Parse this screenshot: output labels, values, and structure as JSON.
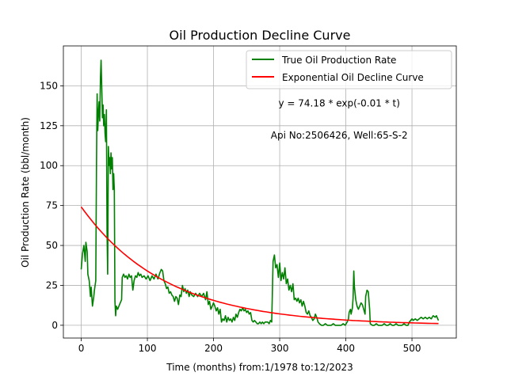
{
  "chart_data": {
    "type": "line",
    "title": "Oil Production Decline Curve",
    "xlabel": "Time (months) from:1/1978 to:12/2023",
    "ylabel": "Oil Production Rate (bbl/month)",
    "xlim": [
      -27,
      567
    ],
    "ylim": [
      -8,
      175
    ],
    "xticks": [
      0,
      100,
      200,
      300,
      400,
      500
    ],
    "yticks": [
      0,
      25,
      50,
      75,
      100,
      125,
      150
    ],
    "grid": true,
    "legend_position": "top-right",
    "annotations": [
      {
        "text": "y = 74.18 * exp(-0.01 * t)",
        "x": 390,
        "y": 137
      },
      {
        "text": "Api No:2506426, Well:65-S-2",
        "x": 390,
        "y": 117
      }
    ],
    "series": [
      {
        "name": "True Oil Production Rate",
        "color": "#008000",
        "kind": "observed",
        "points": [
          [
            0,
            35
          ],
          [
            2,
            45
          ],
          [
            4,
            50
          ],
          [
            6,
            40
          ],
          [
            7,
            52
          ],
          [
            9,
            46
          ],
          [
            10,
            32
          ],
          [
            12,
            28
          ],
          [
            14,
            18
          ],
          [
            15,
            24
          ],
          [
            17,
            12
          ],
          [
            19,
            18
          ],
          [
            20,
            22
          ],
          [
            22,
            28
          ],
          [
            23,
            100
          ],
          [
            24,
            145
          ],
          [
            25,
            122
          ],
          [
            26,
            133
          ],
          [
            27,
            140
          ],
          [
            28,
            128
          ],
          [
            29,
            155
          ],
          [
            30,
            166
          ],
          [
            31,
            150
          ],
          [
            32,
            130
          ],
          [
            33,
            138
          ],
          [
            34,
            125
          ],
          [
            35,
            132
          ],
          [
            36,
            120
          ],
          [
            37,
            115
          ],
          [
            38,
            135
          ],
          [
            39,
            60
          ],
          [
            40,
            32
          ],
          [
            41,
            112
          ],
          [
            42,
            100
          ],
          [
            43,
            105
          ],
          [
            44,
            95
          ],
          [
            45,
            108
          ],
          [
            46,
            98
          ],
          [
            47,
            105
          ],
          [
            48,
            85
          ],
          [
            49,
            95
          ],
          [
            50,
            85
          ],
          [
            51,
            15
          ],
          [
            52,
            6
          ],
          [
            53,
            12
          ],
          [
            55,
            10
          ],
          [
            57,
            12
          ],
          [
            59,
            14
          ],
          [
            61,
            16
          ],
          [
            62,
            30
          ],
          [
            64,
            32
          ],
          [
            66,
            30
          ],
          [
            68,
            31
          ],
          [
            70,
            29
          ],
          [
            72,
            32
          ],
          [
            74,
            30
          ],
          [
            76,
            31
          ],
          [
            78,
            22
          ],
          [
            80,
            28
          ],
          [
            82,
            31
          ],
          [
            84,
            30
          ],
          [
            86,
            33
          ],
          [
            88,
            31
          ],
          [
            90,
            32
          ],
          [
            92,
            30
          ],
          [
            95,
            31
          ],
          [
            98,
            29
          ],
          [
            101,
            31
          ],
          [
            104,
            28
          ],
          [
            107,
            31
          ],
          [
            110,
            29
          ],
          [
            113,
            32
          ],
          [
            116,
            29
          ],
          [
            119,
            33
          ],
          [
            121,
            35
          ],
          [
            123,
            34
          ],
          [
            125,
            28
          ],
          [
            127,
            26
          ],
          [
            129,
            23
          ],
          [
            131,
            24
          ],
          [
            133,
            20
          ],
          [
            135,
            21
          ],
          [
            137,
            19
          ],
          [
            139,
            18
          ],
          [
            141,
            15
          ],
          [
            143,
            18
          ],
          [
            145,
            17
          ],
          [
            147,
            13
          ],
          [
            149,
            19
          ],
          [
            151,
            18
          ],
          [
            153,
            25
          ],
          [
            155,
            21
          ],
          [
            157,
            23
          ],
          [
            159,
            20
          ],
          [
            161,
            22
          ],
          [
            163,
            18
          ],
          [
            165,
            21
          ],
          [
            167,
            19
          ],
          [
            170,
            18
          ],
          [
            173,
            20
          ],
          [
            176,
            18
          ],
          [
            179,
            20
          ],
          [
            182,
            18
          ],
          [
            185,
            20
          ],
          [
            188,
            16
          ],
          [
            190,
            21
          ],
          [
            192,
            13
          ],
          [
            194,
            15
          ],
          [
            196,
            10
          ],
          [
            198,
            12
          ],
          [
            200,
            14
          ],
          [
            202,
            12
          ],
          [
            204,
            9
          ],
          [
            206,
            11
          ],
          [
            208,
            7
          ],
          [
            210,
            10
          ],
          [
            212,
            2
          ],
          [
            214,
            4
          ],
          [
            216,
            3
          ],
          [
            218,
            6
          ],
          [
            220,
            2
          ],
          [
            222,
            5
          ],
          [
            224,
            3
          ],
          [
            226,
            4
          ],
          [
            228,
            2
          ],
          [
            230,
            5
          ],
          [
            232,
            3
          ],
          [
            234,
            7
          ],
          [
            236,
            5
          ],
          [
            238,
            8
          ],
          [
            240,
            10
          ],
          [
            242,
            9
          ],
          [
            244,
            11
          ],
          [
            246,
            9
          ],
          [
            248,
            10
          ],
          [
            250,
            8
          ],
          [
            252,
            9
          ],
          [
            254,
            7
          ],
          [
            256,
            8
          ],
          [
            258,
            3
          ],
          [
            260,
            2
          ],
          [
            262,
            3
          ],
          [
            264,
            2
          ],
          [
            266,
            1
          ],
          [
            268,
            1
          ],
          [
            270,
            2
          ],
          [
            272,
            1
          ],
          [
            274,
            2
          ],
          [
            276,
            1
          ],
          [
            278,
            2
          ],
          [
            280,
            2
          ],
          [
            282,
            2
          ],
          [
            284,
            1
          ],
          [
            286,
            3
          ],
          [
            288,
            2
          ],
          [
            290,
            40
          ],
          [
            292,
            44
          ],
          [
            294,
            36
          ],
          [
            296,
            38
          ],
          [
            298,
            30
          ],
          [
            300,
            39
          ],
          [
            302,
            28
          ],
          [
            304,
            33
          ],
          [
            306,
            29
          ],
          [
            308,
            36
          ],
          [
            310,
            26
          ],
          [
            312,
            29
          ],
          [
            314,
            22
          ],
          [
            316,
            25
          ],
          [
            318,
            21
          ],
          [
            320,
            26
          ],
          [
            322,
            16
          ],
          [
            324,
            17
          ],
          [
            326,
            15
          ],
          [
            328,
            17
          ],
          [
            330,
            14
          ],
          [
            332,
            16
          ],
          [
            334,
            12
          ],
          [
            336,
            15
          ],
          [
            338,
            12
          ],
          [
            340,
            8
          ],
          [
            342,
            7
          ],
          [
            344,
            9
          ],
          [
            346,
            6
          ],
          [
            348,
            5
          ],
          [
            350,
            3
          ],
          [
            352,
            4
          ],
          [
            354,
            7
          ],
          [
            356,
            5
          ],
          [
            358,
            2
          ],
          [
            360,
            1
          ],
          [
            363,
            0
          ],
          [
            366,
            0
          ],
          [
            369,
            1
          ],
          [
            372,
            0
          ],
          [
            375,
            0
          ],
          [
            378,
            0
          ],
          [
            381,
            1
          ],
          [
            384,
            0
          ],
          [
            387,
            0
          ],
          [
            390,
            0
          ],
          [
            393,
            0
          ],
          [
            396,
            1
          ],
          [
            399,
            0
          ],
          [
            402,
            2
          ],
          [
            404,
            4
          ],
          [
            405,
            8
          ],
          [
            407,
            10
          ],
          [
            408,
            7
          ],
          [
            410,
            11
          ],
          [
            411,
            17
          ],
          [
            412,
            34
          ],
          [
            413,
            24
          ],
          [
            415,
            16
          ],
          [
            417,
            12
          ],
          [
            419,
            10
          ],
          [
            421,
            12
          ],
          [
            423,
            14
          ],
          [
            425,
            13
          ],
          [
            427,
            10
          ],
          [
            429,
            7
          ],
          [
            430,
            18
          ],
          [
            432,
            22
          ],
          [
            434,
            21
          ],
          [
            436,
            10
          ],
          [
            437,
            1
          ],
          [
            440,
            0
          ],
          [
            443,
            0
          ],
          [
            446,
            1
          ],
          [
            449,
            0
          ],
          [
            452,
            0
          ],
          [
            455,
            0
          ],
          [
            458,
            1
          ],
          [
            461,
            0
          ],
          [
            464,
            0
          ],
          [
            467,
            1
          ],
          [
            470,
            0
          ],
          [
            473,
            0
          ],
          [
            476,
            1
          ],
          [
            479,
            0
          ],
          [
            482,
            0
          ],
          [
            485,
            0
          ],
          [
            488,
            1
          ],
          [
            491,
            0
          ],
          [
            494,
            0
          ],
          [
            496,
            2
          ],
          [
            498,
            3
          ],
          [
            500,
            4
          ],
          [
            502,
            3
          ],
          [
            505,
            4
          ],
          [
            508,
            3
          ],
          [
            511,
            4
          ],
          [
            514,
            5
          ],
          [
            517,
            4
          ],
          [
            520,
            5
          ],
          [
            523,
            4
          ],
          [
            526,
            5
          ],
          [
            529,
            4
          ],
          [
            532,
            6
          ],
          [
            535,
            5
          ],
          [
            537,
            6
          ],
          [
            539,
            4
          ],
          [
            540,
            3
          ]
        ]
      },
      {
        "name": "Exponential Oil Decline Curve",
        "color": "#ff0000",
        "kind": "fit",
        "function": {
          "a": 74.18,
          "b": 0.0078,
          "t_start": 0,
          "t_end": 540
        }
      }
    ]
  }
}
